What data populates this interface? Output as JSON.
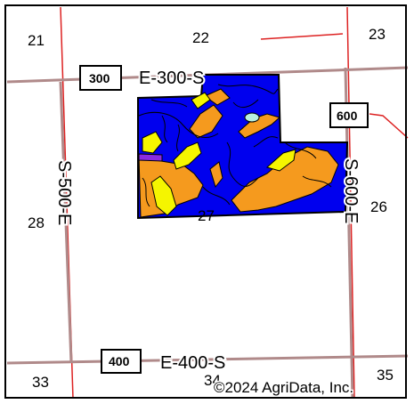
{
  "sections": [
    "21",
    "22",
    "23",
    "26",
    "27",
    "28",
    "33",
    "34",
    "35"
  ],
  "roads": {
    "e300s": "E-300-S",
    "e400s": "E-400-S",
    "s500e": "S-500-E",
    "s600e": "S-600-E"
  },
  "shields": {
    "s300": "300",
    "s400": "400",
    "s600": "600"
  },
  "copyright": "©2024 AgriData, Inc.",
  "colors": {
    "soil_blue": "#0000ee",
    "soil_orange": "#f59a1e",
    "soil_yellow": "#f5f500",
    "soil_purple": "#8a2be2",
    "soil_cyan": "#b8f0e0",
    "road_gray": "#b08a8a",
    "section_red": "#dd2222"
  }
}
